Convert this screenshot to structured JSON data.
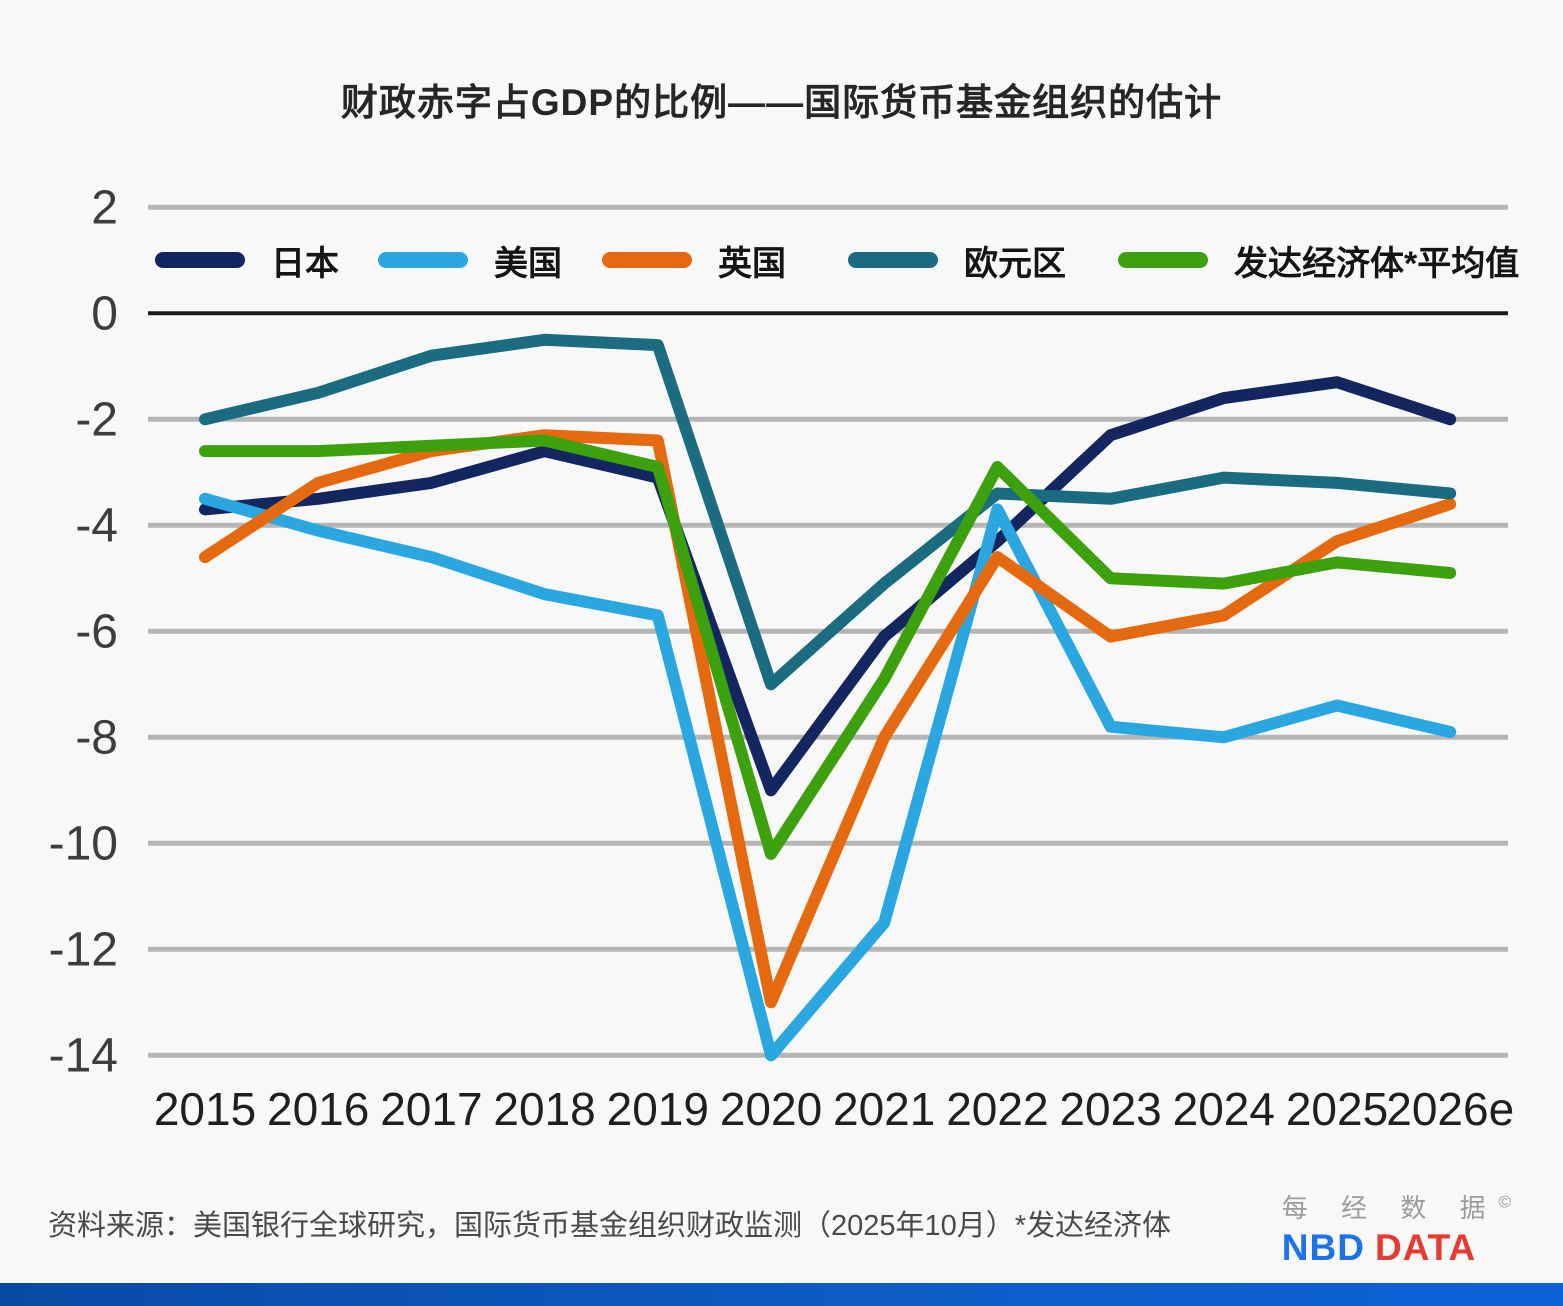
{
  "title": "财政赤字占GDP的比例——国际货币基金组织的估计",
  "source_note": "资料来源：美国银行全球研究，国际货币基金组织财政监测（2025年10月）*发达经济体",
  "logo": {
    "cn": "每 经 数 据",
    "copyright": "©",
    "nbd": "NBD",
    "data": "DATA"
  },
  "colors": {
    "background": "#f8f8f8",
    "gridline": "#b5b5b5",
    "zero_line": "#1a1a1a",
    "axis_label": "#3d3d3d",
    "bottom_bar_left": "#0a4aa4",
    "bottom_bar_right": "#0c63d8",
    "logo_gray": "#9c9c9c",
    "logo_blue": "#1e72e8",
    "logo_red": "#e53b30"
  },
  "chart_data": {
    "type": "line",
    "title": "财政赤字占GDP的比例——国际货币基金组织的估计",
    "categories": [
      "2015",
      "2016",
      "2017",
      "2018",
      "2019",
      "2020",
      "2021",
      "2022",
      "2023",
      "2024",
      "2025",
      "2026e"
    ],
    "series": [
      {
        "key": "japan",
        "name": "日本",
        "color": "#13265f",
        "values": [
          -3.7,
          -3.5,
          -3.2,
          -2.6,
          -3.1,
          -9.0,
          -6.1,
          -4.3,
          -2.3,
          -1.6,
          -1.3,
          -2.0
        ]
      },
      {
        "key": "usa",
        "name": "美国",
        "color": "#2aa7e0",
        "values": [
          -3.5,
          -4.1,
          -4.6,
          -5.3,
          -5.7,
          -14.0,
          -11.5,
          -3.7,
          -7.8,
          -8.0,
          -7.4,
          -7.9
        ]
      },
      {
        "key": "uk",
        "name": "英国",
        "color": "#e5690e",
        "values": [
          -4.6,
          -3.2,
          -2.6,
          -2.3,
          -2.4,
          -13.0,
          -8.0,
          -4.6,
          -6.1,
          -5.7,
          -4.3,
          -3.6
        ]
      },
      {
        "key": "eurozone",
        "name": "欧元区",
        "color": "#1b6c80",
        "values": [
          -2.0,
          -1.5,
          -0.8,
          -0.5,
          -0.6,
          -7.0,
          -5.1,
          -3.4,
          -3.5,
          -3.1,
          -3.2,
          -3.4
        ]
      },
      {
        "key": "advanced-economies",
        "name": "发达经济体*平均值",
        "color": "#3da10e",
        "values": [
          -2.6,
          -2.6,
          -2.5,
          -2.4,
          -2.9,
          -10.2,
          -6.9,
          -2.9,
          -5.0,
          -5.1,
          -4.7,
          -4.9
        ]
      }
    ],
    "xlabel": "",
    "ylabel": "",
    "ylim": [
      -14,
      2
    ],
    "y_ticks": [
      2,
      0,
      -2,
      -4,
      -6,
      -8,
      -10,
      -12,
      -14
    ],
    "grid": true,
    "legend_position": "top"
  }
}
